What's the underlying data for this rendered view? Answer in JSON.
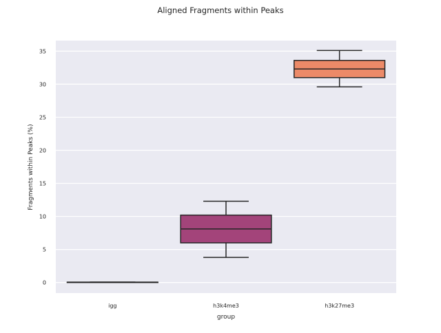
{
  "chart_data": {
    "type": "box",
    "title": "Aligned Fragments within Peaks",
    "xlabel": "group",
    "ylabel": "Fragments within Peaks (%)",
    "categories": [
      "igg",
      "h3k4me3",
      "h3k27me3"
    ],
    "ylim": [
      -1.6,
      36.6
    ],
    "yticks": [
      0,
      5,
      10,
      15,
      20,
      25,
      30,
      35
    ],
    "grid": true,
    "background": "#eaeaf2",
    "boxes": [
      {
        "category": "igg",
        "whisker_low": 0.05,
        "q1": 0.05,
        "median": 0.05,
        "q3": 0.05,
        "whisker_high": 0.05,
        "color": "#3b0f6f"
      },
      {
        "category": "h3k4me3",
        "whisker_low": 3.8,
        "q1": 6.0,
        "median": 8.1,
        "q3": 10.2,
        "whisker_high": 12.3,
        "color": "#a3447a"
      },
      {
        "category": "h3k27me3",
        "whisker_low": 29.6,
        "q1": 31.0,
        "median": 32.3,
        "q3": 33.6,
        "whisker_high": 35.1,
        "color": "#ec8a68"
      }
    ]
  }
}
